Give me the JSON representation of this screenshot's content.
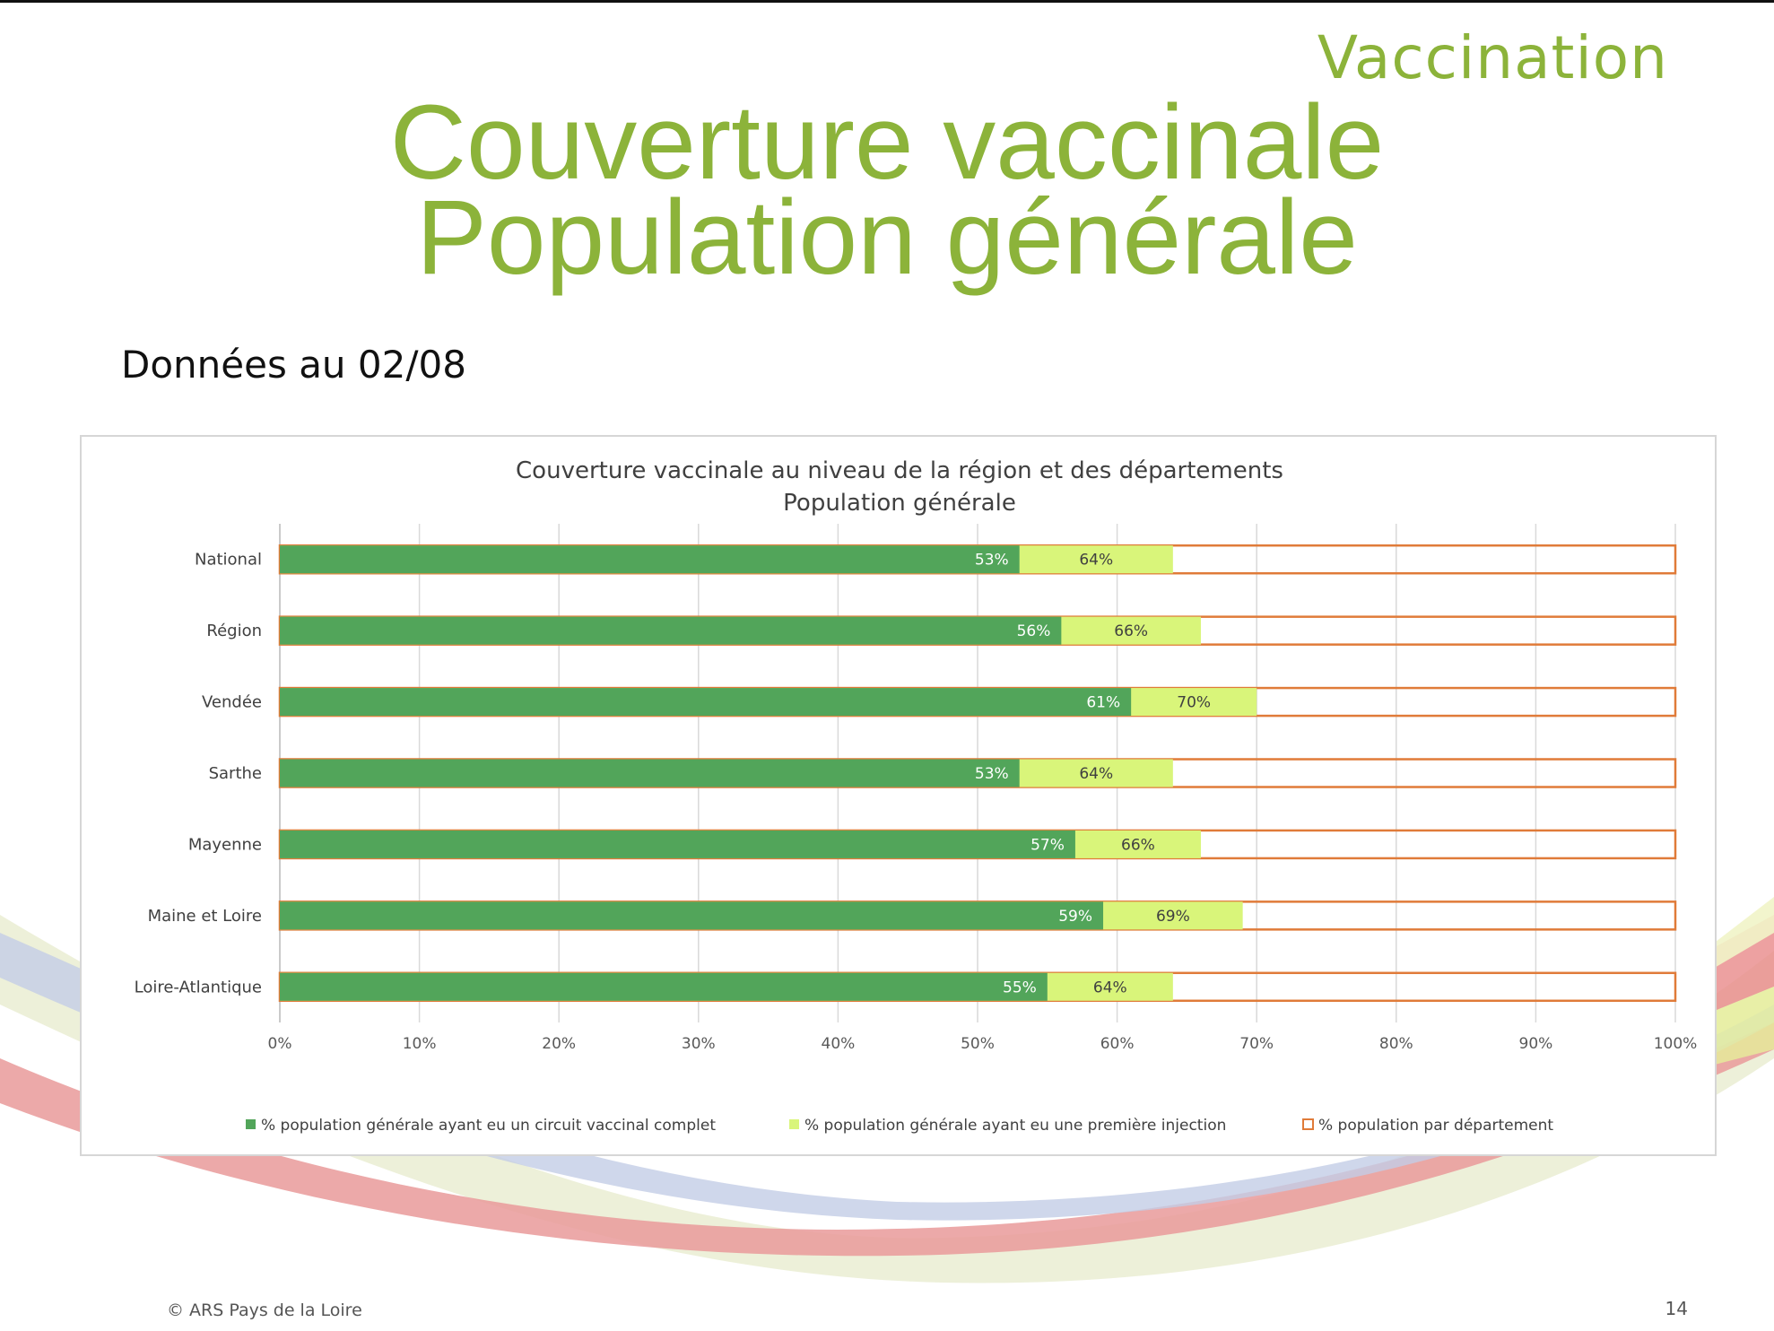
{
  "slide": {
    "tag": "Vaccination",
    "title_line1": "Couverture vaccinale",
    "title_line2": "Population générale",
    "date_text": "Données au 02/08",
    "footer_left": "© ARS Pays de la Loire",
    "page_number": "14"
  },
  "colors": {
    "title_green": "#8cb33a",
    "complete": "#52a55a",
    "first_injection": "#d9f57a",
    "population_outline": "#e07b39"
  },
  "chart_data": {
    "type": "bar",
    "orientation": "horizontal",
    "title_line1": "Couverture vaccinale au niveau de la région et des départements",
    "title_line2": "Population générale",
    "categories": [
      "National",
      "Région",
      "Vendée",
      "Sarthe",
      "Mayenne",
      "Maine et Loire",
      "Loire-Atlantique"
    ],
    "series": [
      {
        "name": "% population générale ayant eu un circuit vaccinal complet",
        "values": [
          53,
          56,
          61,
          53,
          57,
          59,
          55
        ],
        "labels": [
          "53%",
          "56%",
          "61%",
          "53%",
          "57%",
          "59%",
          "55%"
        ]
      },
      {
        "name": "% population générale ayant eu une première injection",
        "values": [
          64,
          66,
          70,
          64,
          66,
          69,
          64
        ],
        "labels": [
          "64%",
          "66%",
          "70%",
          "64%",
          "66%",
          "69%",
          "64%"
        ]
      },
      {
        "name": "% population par département",
        "values": [
          100,
          100,
          100,
          100,
          100,
          100,
          100
        ]
      }
    ],
    "x_ticks": [
      "0%",
      "10%",
      "20%",
      "30%",
      "40%",
      "50%",
      "60%",
      "70%",
      "80%",
      "90%",
      "100%"
    ],
    "xlim": [
      0,
      100
    ],
    "grid": true,
    "legend_position": "bottom"
  }
}
